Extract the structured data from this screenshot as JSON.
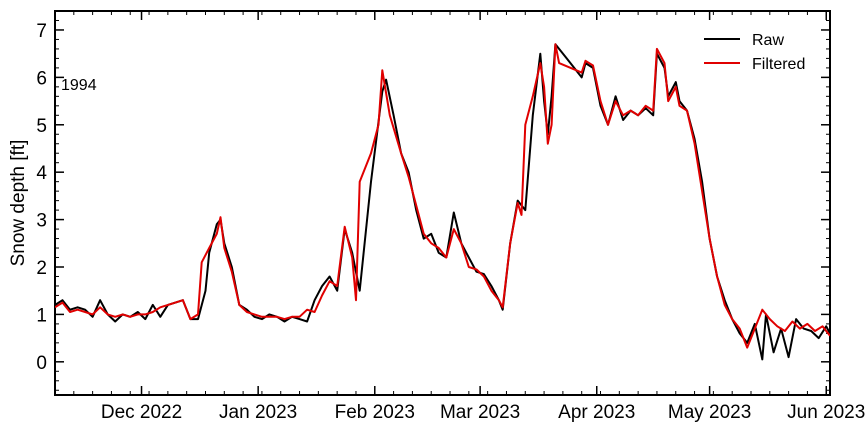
{
  "chart_data": {
    "type": "line",
    "title": "",
    "xlabel": "",
    "ylabel": "Snow depth [ft]",
    "annotation": "1994",
    "x_range": [
      "2022-11-08",
      "2023-06-02"
    ],
    "ylim": [
      -0.7,
      7.4
    ],
    "yticks": [
      0,
      1,
      2,
      3,
      4,
      5,
      6,
      7
    ],
    "xticks": [
      {
        "date": "2022-12-01",
        "label": "Dec 2022"
      },
      {
        "date": "2023-01-01",
        "label": "Jan 2023"
      },
      {
        "date": "2023-02-01",
        "label": "Feb 2023"
      },
      {
        "date": "2023-03-01",
        "label": "Mar 2023"
      },
      {
        "date": "2023-04-01",
        "label": "Apr 2023"
      },
      {
        "date": "2023-05-01",
        "label": "May 2023"
      },
      {
        "date": "2023-06-01",
        "label": "Jun 2023"
      }
    ],
    "grid": false,
    "legend": {
      "position": "top-right",
      "entries": [
        "Raw",
        "Filtered"
      ]
    },
    "series": [
      {
        "name": "Raw",
        "color": "#000000",
        "points": [
          [
            "2022-11-08",
            1.2
          ],
          [
            "2022-11-10",
            1.3
          ],
          [
            "2022-11-12",
            1.1
          ],
          [
            "2022-11-14",
            1.15
          ],
          [
            "2022-11-16",
            1.1
          ],
          [
            "2022-11-18",
            0.95
          ],
          [
            "2022-11-20",
            1.3
          ],
          [
            "2022-11-22",
            1.0
          ],
          [
            "2022-11-24",
            0.85
          ],
          [
            "2022-11-26",
            1.0
          ],
          [
            "2022-11-28",
            0.95
          ],
          [
            "2022-11-30",
            1.05
          ],
          [
            "2022-12-02",
            0.9
          ],
          [
            "2022-12-04",
            1.2
          ],
          [
            "2022-12-06",
            0.95
          ],
          [
            "2022-12-08",
            1.2
          ],
          [
            "2022-12-10",
            1.25
          ],
          [
            "2022-12-12",
            1.3
          ],
          [
            "2022-12-14",
            0.9
          ],
          [
            "2022-12-16",
            0.9
          ],
          [
            "2022-12-18",
            1.5
          ],
          [
            "2022-12-19",
            2.3
          ],
          [
            "2022-12-21",
            2.9
          ],
          [
            "2022-12-22",
            3.0
          ],
          [
            "2022-12-23",
            2.5
          ],
          [
            "2022-12-25",
            2.0
          ],
          [
            "2022-12-27",
            1.2
          ],
          [
            "2022-12-29",
            1.1
          ],
          [
            "2022-12-31",
            0.95
          ],
          [
            "2023-01-02",
            0.9
          ],
          [
            "2023-01-04",
            1.0
          ],
          [
            "2023-01-06",
            0.95
          ],
          [
            "2023-01-08",
            0.85
          ],
          [
            "2023-01-10",
            0.95
          ],
          [
            "2023-01-12",
            0.9
          ],
          [
            "2023-01-14",
            0.85
          ],
          [
            "2023-01-16",
            1.3
          ],
          [
            "2023-01-18",
            1.6
          ],
          [
            "2023-01-20",
            1.8
          ],
          [
            "2023-01-22",
            1.5
          ],
          [
            "2023-01-24",
            2.8
          ],
          [
            "2023-01-26",
            2.3
          ],
          [
            "2023-01-28",
            1.5
          ],
          [
            "2023-01-31",
            3.8
          ],
          [
            "2023-02-03",
            5.7
          ],
          [
            "2023-02-04",
            5.95
          ],
          [
            "2023-02-06",
            5.2
          ],
          [
            "2023-02-08",
            4.4
          ],
          [
            "2023-02-10",
            4.0
          ],
          [
            "2023-02-12",
            3.2
          ],
          [
            "2023-02-14",
            2.6
          ],
          [
            "2023-02-16",
            2.7
          ],
          [
            "2023-02-18",
            2.3
          ],
          [
            "2023-02-20",
            2.2
          ],
          [
            "2023-02-22",
            3.15
          ],
          [
            "2023-02-24",
            2.5
          ],
          [
            "2023-02-26",
            2.2
          ],
          [
            "2023-02-28",
            1.9
          ],
          [
            "2023-03-02",
            1.85
          ],
          [
            "2023-03-04",
            1.6
          ],
          [
            "2023-03-06",
            1.3
          ],
          [
            "2023-03-07",
            1.1
          ],
          [
            "2023-03-09",
            2.5
          ],
          [
            "2023-03-11",
            3.4
          ],
          [
            "2023-03-13",
            3.2
          ],
          [
            "2023-03-15",
            5.2
          ],
          [
            "2023-03-17",
            6.5
          ],
          [
            "2023-03-18",
            5.5
          ],
          [
            "2023-03-19",
            4.8
          ],
          [
            "2023-03-20",
            5.6
          ],
          [
            "2023-03-21",
            6.7
          ],
          [
            "2023-03-24",
            6.4
          ],
          [
            "2023-03-28",
            6.0
          ],
          [
            "2023-03-29",
            6.3
          ],
          [
            "2023-03-31",
            6.2
          ],
          [
            "2023-04-02",
            5.4
          ],
          [
            "2023-04-04",
            5.0
          ],
          [
            "2023-04-06",
            5.6
          ],
          [
            "2023-04-08",
            5.1
          ],
          [
            "2023-04-10",
            5.3
          ],
          [
            "2023-04-12",
            5.2
          ],
          [
            "2023-04-14",
            5.35
          ],
          [
            "2023-04-16",
            5.2
          ],
          [
            "2023-04-17",
            6.5
          ],
          [
            "2023-04-19",
            6.2
          ],
          [
            "2023-04-20",
            5.6
          ],
          [
            "2023-04-22",
            5.9
          ],
          [
            "2023-04-23",
            5.5
          ],
          [
            "2023-04-25",
            5.3
          ],
          [
            "2023-04-27",
            4.7
          ],
          [
            "2023-04-29",
            3.8
          ],
          [
            "2023-05-01",
            2.6
          ],
          [
            "2023-05-03",
            1.8
          ],
          [
            "2023-05-05",
            1.3
          ],
          [
            "2023-05-07",
            0.9
          ],
          [
            "2023-05-09",
            0.6
          ],
          [
            "2023-05-11",
            0.4
          ],
          [
            "2023-05-13",
            0.8
          ],
          [
            "2023-05-15",
            0.05
          ],
          [
            "2023-05-16",
            1.0
          ],
          [
            "2023-05-18",
            0.2
          ],
          [
            "2023-05-20",
            0.7
          ],
          [
            "2023-05-22",
            0.1
          ],
          [
            "2023-05-24",
            0.9
          ],
          [
            "2023-05-26",
            0.7
          ],
          [
            "2023-05-28",
            0.65
          ],
          [
            "2023-05-30",
            0.5
          ],
          [
            "2023-06-01",
            0.75
          ],
          [
            "2023-06-02",
            0.6
          ]
        ]
      },
      {
        "name": "Filtered",
        "color": "#e00000",
        "points": [
          [
            "2022-11-08",
            1.15
          ],
          [
            "2022-11-10",
            1.25
          ],
          [
            "2022-11-12",
            1.05
          ],
          [
            "2022-11-14",
            1.1
          ],
          [
            "2022-11-16",
            1.05
          ],
          [
            "2022-11-18",
            1.0
          ],
          [
            "2022-11-20",
            1.15
          ],
          [
            "2022-11-22",
            1.0
          ],
          [
            "2022-11-24",
            0.95
          ],
          [
            "2022-11-26",
            1.0
          ],
          [
            "2022-11-28",
            0.95
          ],
          [
            "2022-11-30",
            1.0
          ],
          [
            "2022-12-02",
            1.0
          ],
          [
            "2022-12-04",
            1.05
          ],
          [
            "2022-12-06",
            1.15
          ],
          [
            "2022-12-08",
            1.2
          ],
          [
            "2022-12-10",
            1.25
          ],
          [
            "2022-12-12",
            1.3
          ],
          [
            "2022-12-14",
            0.9
          ],
          [
            "2022-12-16",
            1.0
          ],
          [
            "2022-12-17",
            2.1
          ],
          [
            "2022-12-19",
            2.4
          ],
          [
            "2022-12-21",
            2.7
          ],
          [
            "2022-12-22",
            3.05
          ],
          [
            "2022-12-23",
            2.4
          ],
          [
            "2022-12-25",
            1.9
          ],
          [
            "2022-12-27",
            1.2
          ],
          [
            "2022-12-29",
            1.05
          ],
          [
            "2022-12-31",
            1.0
          ],
          [
            "2023-01-02",
            0.95
          ],
          [
            "2023-01-04",
            0.95
          ],
          [
            "2023-01-06",
            0.95
          ],
          [
            "2023-01-08",
            0.9
          ],
          [
            "2023-01-10",
            0.95
          ],
          [
            "2023-01-12",
            0.95
          ],
          [
            "2023-01-14",
            1.1
          ],
          [
            "2023-01-16",
            1.05
          ],
          [
            "2023-01-18",
            1.4
          ],
          [
            "2023-01-20",
            1.7
          ],
          [
            "2023-01-22",
            1.6
          ],
          [
            "2023-01-24",
            2.85
          ],
          [
            "2023-01-26",
            2.2
          ],
          [
            "2023-01-27",
            1.3
          ],
          [
            "2023-01-28",
            3.8
          ],
          [
            "2023-01-31",
            4.4
          ],
          [
            "2023-02-02",
            5.0
          ],
          [
            "2023-02-03",
            6.15
          ],
          [
            "2023-02-05",
            5.2
          ],
          [
            "2023-02-08",
            4.4
          ],
          [
            "2023-02-10",
            3.9
          ],
          [
            "2023-02-12",
            3.3
          ],
          [
            "2023-02-14",
            2.7
          ],
          [
            "2023-02-16",
            2.5
          ],
          [
            "2023-02-18",
            2.4
          ],
          [
            "2023-02-20",
            2.2
          ],
          [
            "2023-02-22",
            2.8
          ],
          [
            "2023-02-24",
            2.5
          ],
          [
            "2023-02-26",
            2.0
          ],
          [
            "2023-02-28",
            1.95
          ],
          [
            "2023-03-02",
            1.8
          ],
          [
            "2023-03-04",
            1.5
          ],
          [
            "2023-03-06",
            1.3
          ],
          [
            "2023-03-07",
            1.15
          ],
          [
            "2023-03-09",
            2.5
          ],
          [
            "2023-03-11",
            3.35
          ],
          [
            "2023-03-12",
            3.1
          ],
          [
            "2023-03-13",
            5.0
          ],
          [
            "2023-03-15",
            5.6
          ],
          [
            "2023-03-17",
            6.3
          ],
          [
            "2023-03-18",
            5.8
          ],
          [
            "2023-03-19",
            4.6
          ],
          [
            "2023-03-20",
            5.0
          ],
          [
            "2023-03-21",
            6.7
          ],
          [
            "2023-03-22",
            6.3
          ],
          [
            "2023-03-28",
            6.1
          ],
          [
            "2023-03-29",
            6.35
          ],
          [
            "2023-03-31",
            6.25
          ],
          [
            "2023-04-02",
            5.5
          ],
          [
            "2023-04-04",
            5.0
          ],
          [
            "2023-04-06",
            5.5
          ],
          [
            "2023-04-08",
            5.2
          ],
          [
            "2023-04-10",
            5.3
          ],
          [
            "2023-04-12",
            5.2
          ],
          [
            "2023-04-14",
            5.4
          ],
          [
            "2023-04-16",
            5.3
          ],
          [
            "2023-04-17",
            6.6
          ],
          [
            "2023-04-19",
            6.3
          ],
          [
            "2023-04-20",
            5.5
          ],
          [
            "2023-04-22",
            5.8
          ],
          [
            "2023-04-23",
            5.4
          ],
          [
            "2023-04-25",
            5.3
          ],
          [
            "2023-04-27",
            4.6
          ],
          [
            "2023-04-29",
            3.6
          ],
          [
            "2023-05-01",
            2.6
          ],
          [
            "2023-05-03",
            1.8
          ],
          [
            "2023-05-05",
            1.2
          ],
          [
            "2023-05-07",
            0.9
          ],
          [
            "2023-05-09",
            0.7
          ],
          [
            "2023-05-11",
            0.3
          ],
          [
            "2023-05-13",
            0.7
          ],
          [
            "2023-05-15",
            1.1
          ],
          [
            "2023-05-17",
            0.9
          ],
          [
            "2023-05-19",
            0.75
          ],
          [
            "2023-05-21",
            0.65
          ],
          [
            "2023-05-23",
            0.85
          ],
          [
            "2023-05-25",
            0.7
          ],
          [
            "2023-05-27",
            0.8
          ],
          [
            "2023-05-29",
            0.65
          ],
          [
            "2023-05-31",
            0.75
          ],
          [
            "2023-06-02",
            0.55
          ]
        ]
      }
    ]
  }
}
